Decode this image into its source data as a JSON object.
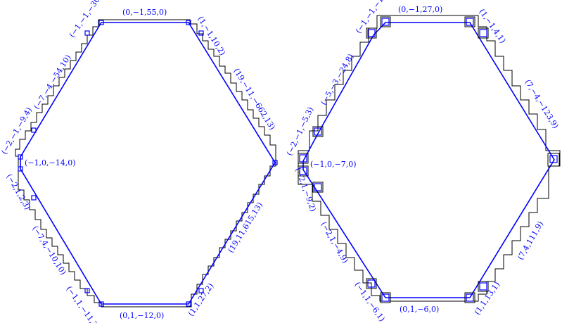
{
  "diagrams": [
    {
      "id": "left",
      "labels": [
        {
          "text": "(0,−1,55,0)"
        },
        {
          "text": "(−1,−1,−30,2)"
        },
        {
          "text": "(1,−1,10,2)"
        },
        {
          "text": "(−7,−4,−54,10)"
        },
        {
          "text": "(19,−11,−662,13)"
        },
        {
          "text": "(−2,−1,−9,4)"
        },
        {
          "text": "(−1,0,−14,0)"
        },
        {
          "text": "(−2,1,2,3)"
        },
        {
          "text": "(−7,4,−10,10)"
        },
        {
          "text": "(19,11,615,13)"
        },
        {
          "text": "(−1,1,−11,2)"
        },
        {
          "text": "(0,1,−12,0)"
        },
        {
          "text": "(1,1,27,2)"
        }
      ]
    },
    {
      "id": "right",
      "labels": [
        {
          "text": "(0,−1,27,0)"
        },
        {
          "text": "(−1,−1,−15,1)"
        },
        {
          "text": "(1,−1,4,1)"
        },
        {
          "text": "(−5,−3,−24,8)"
        },
        {
          "text": "(7,−4,−123,9)"
        },
        {
          "text": "(−2,−1,−5,3)"
        },
        {
          "text": "(−1,0,−7,0)"
        },
        {
          "text": "(−2,1,−9,2)"
        },
        {
          "text": "(−2,1,−4,9)"
        },
        {
          "text": "(7,4,111,9)"
        },
        {
          "text": "(−1,1,−6,1)"
        },
        {
          "text": "(0,1,−6,0)"
        },
        {
          "text": "(1,1,13,1)"
        }
      ]
    }
  ],
  "colors": {
    "polygon": "#0000ff",
    "staircase": "#000000",
    "labels": "#0000ff"
  }
}
